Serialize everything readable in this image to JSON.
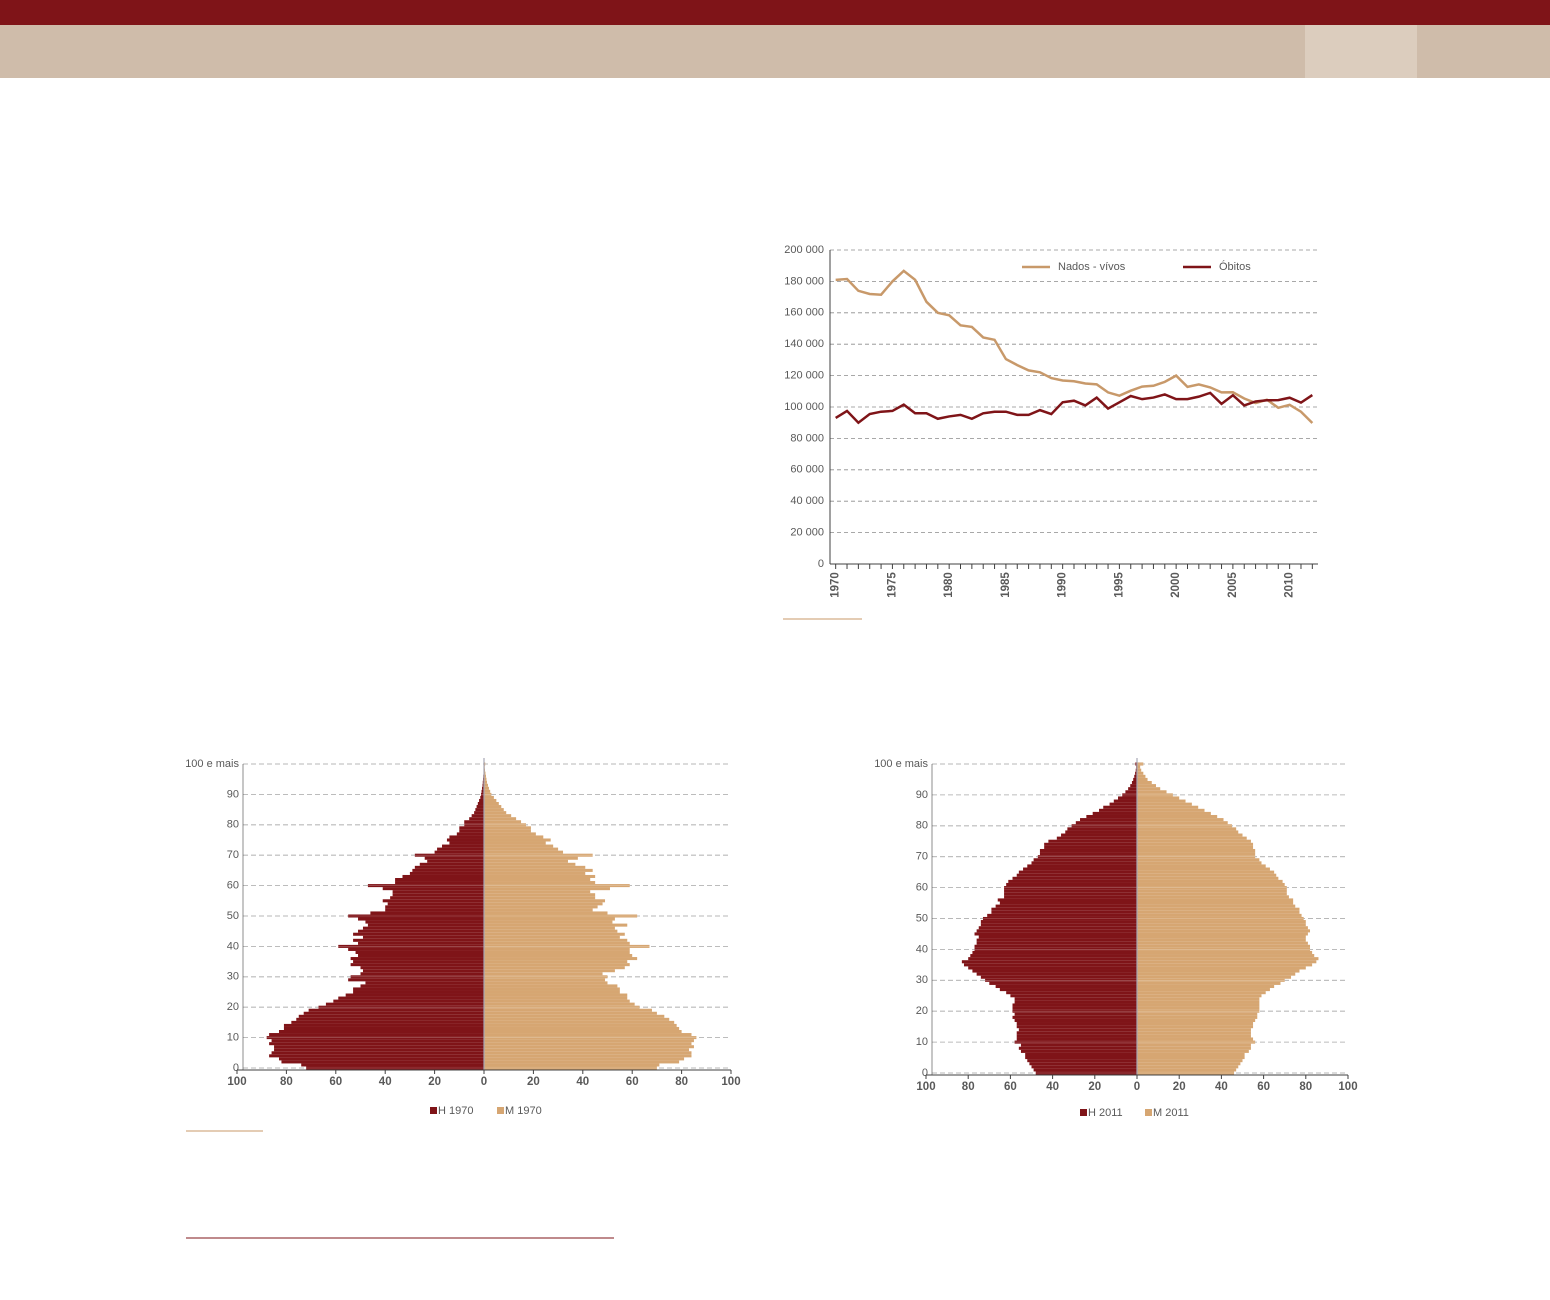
{
  "chart_data": [
    {
      "type": "line",
      "x": [
        1970,
        1971,
        1972,
        1973,
        1974,
        1975,
        1976,
        1977,
        1978,
        1979,
        1980,
        1981,
        1982,
        1983,
        1984,
        1985,
        1986,
        1987,
        1988,
        1989,
        1990,
        1991,
        1992,
        1993,
        1994,
        1995,
        1996,
        1997,
        1998,
        1999,
        2000,
        2001,
        2002,
        2003,
        2004,
        2005,
        2006,
        2007,
        2008,
        2009,
        2010,
        2011,
        2012
      ],
      "xlim": [
        1969.5,
        2012.5
      ],
      "xticks": [
        1970,
        1975,
        1980,
        1985,
        1990,
        1995,
        2000,
        2005,
        2010
      ],
      "ylim": [
        0,
        200000
      ],
      "yticks": [
        0,
        {
          "value": 20000,
          "label": "20 000"
        },
        {
          "value": 40000,
          "label": "40 000"
        },
        {
          "value": 60000,
          "label": "60 000"
        },
        {
          "value": 80000,
          "label": "80 000"
        },
        {
          "value": 100000,
          "label": "100 000"
        },
        {
          "value": 120000,
          "label": "120 000"
        },
        {
          "value": 140000,
          "label": "140 000"
        },
        {
          "value": 160000,
          "label": "160 000"
        },
        {
          "value": 180000,
          "label": "180 000"
        },
        {
          "value": 200000,
          "label": "200 000"
        }
      ],
      "grid": true,
      "legend": "top",
      "series": [
        {
          "name": "Nados - vívos",
          "color": "#c8996a",
          "values": [
            181000,
            181500,
            174000,
            172000,
            171500,
            180000,
            186700,
            181000,
            167000,
            160000,
            158400,
            152000,
            151000,
            144300,
            142800,
            130500,
            126700,
            123300,
            122100,
            118400,
            116900,
            116400,
            115000,
            114400,
            109300,
            107200,
            110400,
            113000,
            113500,
            116000,
            120000,
            112800,
            114400,
            112500,
            109300,
            109400,
            105400,
            102500,
            104600,
            99500,
            101400,
            97000,
            89800
          ]
        },
        {
          "name": "Óbitos",
          "color": "#7f1418",
          "values": [
            93000,
            97500,
            90000,
            95500,
            97000,
            97500,
            101500,
            96000,
            96000,
            92500,
            94000,
            95000,
            92500,
            96000,
            97000,
            97000,
            95000,
            95000,
            98000,
            95500,
            103000,
            104000,
            101000,
            106000,
            99000,
            103000,
            107000,
            105000,
            106000,
            108000,
            105000,
            105000,
            106600,
            109000,
            102000,
            107500,
            101000,
            103500,
            104300,
            104400,
            105900,
            102800,
            107600
          ]
        }
      ]
    },
    {
      "type": "population_pyramid",
      "categories": [
        "0",
        null,
        null,
        null,
        null,
        null,
        null,
        null,
        null,
        null,
        "10",
        null,
        null,
        null,
        null,
        null,
        null,
        null,
        null,
        null,
        "20",
        null,
        null,
        null,
        null,
        null,
        null,
        null,
        null,
        null,
        "30",
        null,
        null,
        null,
        null,
        null,
        null,
        null,
        null,
        null,
        "40",
        null,
        null,
        null,
        null,
        null,
        null,
        null,
        null,
        null,
        "50",
        null,
        null,
        null,
        null,
        null,
        null,
        null,
        null,
        null,
        "60",
        null,
        null,
        null,
        null,
        null,
        null,
        null,
        null,
        null,
        "70",
        null,
        null,
        null,
        null,
        null,
        null,
        null,
        null,
        null,
        "80",
        null,
        null,
        null,
        null,
        null,
        null,
        null,
        null,
        null,
        "90",
        null,
        null,
        null,
        null,
        null,
        null,
        null,
        null,
        null,
        "100 e mais"
      ],
      "xlim": [
        -100,
        100
      ],
      "xticks": [
        {
          "value": -100,
          "label": "100"
        },
        {
          "value": -80,
          "label": "80"
        },
        {
          "value": -60,
          "label": "60"
        },
        {
          "value": -40,
          "label": "40"
        },
        {
          "value": -20,
          "label": "20"
        },
        0,
        20,
        40,
        60,
        80,
        100
      ],
      "grid": true,
      "legend": "bottom",
      "series": [
        {
          "name": "H 1970",
          "color": "#7f1418",
          "values": [
            72,
            74,
            82,
            83,
            87,
            86,
            85,
            85,
            87,
            86,
            88,
            87,
            83,
            81,
            81,
            78,
            76,
            75,
            73,
            71,
            67,
            64,
            61,
            59,
            56,
            53,
            53,
            50,
            48,
            55,
            54,
            50,
            49,
            50,
            54,
            53,
            54,
            51,
            52,
            55,
            59,
            51,
            53,
            49,
            53,
            51,
            49,
            47,
            48,
            51,
            55,
            46,
            40,
            40,
            39,
            41,
            38,
            37,
            37,
            41,
            47,
            36,
            36,
            33,
            30,
            29,
            28,
            26,
            23,
            24,
            28,
            20,
            19,
            17,
            14,
            15,
            14,
            11,
            10,
            10,
            8,
            8,
            6,
            5,
            4,
            3.5,
            3,
            2.5,
            2,
            1.5,
            1.2,
            1,
            0.8,
            0.6,
            0.5,
            0.4,
            0.3,
            0.2,
            0.2,
            0.1,
            0.2
          ]
        },
        {
          "name": "M 1970",
          "color": "#d6a672",
          "values": [
            70,
            71,
            79,
            81,
            84,
            84,
            83,
            85,
            84,
            85,
            86,
            84,
            80,
            79,
            78,
            77,
            75,
            73,
            70,
            68,
            63,
            61,
            59,
            58,
            58,
            55,
            55,
            54,
            50,
            49,
            50,
            48,
            53,
            57,
            59,
            58,
            62,
            60,
            59,
            59,
            67,
            59,
            58,
            55,
            57,
            54,
            53,
            58,
            52,
            53,
            62,
            50,
            44,
            46,
            48,
            49,
            45,
            45,
            43,
            51,
            59,
            45,
            43,
            45,
            41,
            44,
            41,
            37,
            34,
            38,
            44,
            32,
            30,
            28,
            25,
            27,
            24,
            21,
            19,
            19,
            17,
            15,
            13,
            11,
            9,
            8,
            7,
            6,
            5,
            4,
            3,
            2.5,
            2,
            1.6,
            1.2,
            1,
            0.8,
            0.6,
            0.4,
            0.3,
            0.5
          ]
        }
      ]
    },
    {
      "type": "population_pyramid",
      "categories": [
        "0",
        null,
        null,
        null,
        null,
        null,
        null,
        null,
        null,
        null,
        "10",
        null,
        null,
        null,
        null,
        null,
        null,
        null,
        null,
        null,
        "20",
        null,
        null,
        null,
        null,
        null,
        null,
        null,
        null,
        null,
        "30",
        null,
        null,
        null,
        null,
        null,
        null,
        null,
        null,
        null,
        "40",
        null,
        null,
        null,
        null,
        null,
        null,
        null,
        null,
        null,
        "50",
        null,
        null,
        null,
        null,
        null,
        null,
        null,
        null,
        null,
        "60",
        null,
        null,
        null,
        null,
        null,
        null,
        null,
        null,
        null,
        "70",
        null,
        null,
        null,
        null,
        null,
        null,
        null,
        null,
        null,
        "80",
        null,
        null,
        null,
        null,
        null,
        null,
        null,
        null,
        null,
        "90",
        null,
        null,
        null,
        null,
        null,
        null,
        null,
        null,
        null,
        "100 e mais"
      ],
      "xlim": [
        -100,
        100
      ],
      "xticks": [
        {
          "value": -100,
          "label": "100"
        },
        {
          "value": -80,
          "label": "80"
        },
        {
          "value": -60,
          "label": "60"
        },
        {
          "value": -40,
          "label": "40"
        },
        {
          "value": -20,
          "label": "20"
        },
        0,
        20,
        40,
        60,
        80,
        100
      ],
      "grid": true,
      "legend": "bottom",
      "series": [
        {
          "name": "H 2011",
          "color": "#7f1418",
          "values": [
            48,
            49,
            50,
            51,
            52,
            53,
            53,
            55,
            56,
            55,
            58,
            57,
            57,
            57,
            56,
            57,
            57,
            58,
            59,
            58,
            59,
            59,
            59,
            58,
            58,
            60,
            62,
            65,
            67,
            70,
            72,
            74,
            76,
            78,
            80,
            82,
            83,
            80,
            79,
            78,
            77,
            77,
            76,
            76,
            75,
            77,
            76,
            75,
            74,
            74,
            73,
            71,
            69,
            69,
            67,
            65,
            66,
            63,
            63,
            63,
            63,
            62,
            61,
            59,
            57,
            56,
            54,
            52,
            50,
            49,
            47,
            46,
            46,
            44,
            44,
            42,
            38,
            36,
            34,
            33,
            31,
            29,
            27,
            24,
            21,
            18,
            16,
            13,
            11,
            9,
            7,
            5.5,
            4.2,
            3.2,
            2.4,
            1.8,
            1.3,
            0.9,
            0.6,
            0.4,
            0.8
          ]
        },
        {
          "name": "M 2011",
          "color": "#d6a672",
          "values": [
            46,
            47,
            48,
            49,
            50,
            51,
            51,
            53,
            54,
            54,
            56,
            55,
            54,
            54,
            54,
            55,
            55,
            56,
            57,
            57,
            58,
            58,
            58,
            58,
            58,
            59,
            61,
            63,
            65,
            68,
            70,
            73,
            75,
            77,
            80,
            83,
            85,
            86,
            84,
            83,
            82,
            82,
            81,
            80,
            80,
            81,
            82,
            81,
            80,
            80,
            79,
            78,
            77,
            77,
            75,
            74,
            74,
            72,
            71,
            71,
            71,
            70,
            69,
            67,
            66,
            65,
            63,
            61,
            59,
            58,
            56,
            56,
            56,
            55,
            55,
            54,
            52,
            50,
            48,
            47,
            45,
            43,
            41,
            38,
            35,
            32,
            29,
            26,
            23,
            20,
            17,
            14,
            11,
            9,
            7,
            5,
            4,
            3,
            2,
            1.5,
            3
          ]
        }
      ]
    }
  ]
}
